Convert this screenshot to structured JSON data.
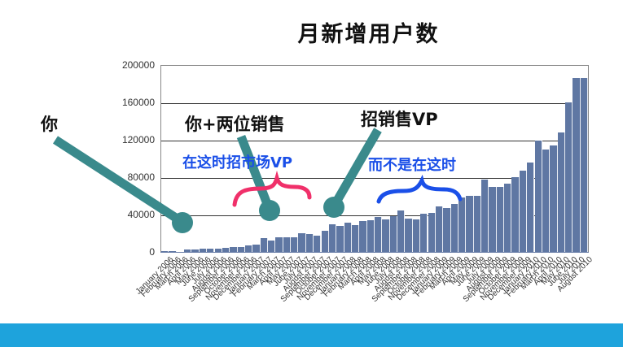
{
  "chart_data": {
    "type": "bar",
    "title": "月新增用户数",
    "xlabel": "",
    "ylabel": "",
    "ylim": [
      0,
      200000
    ],
    "yticks": [
      0,
      40000,
      80000,
      120000,
      160000,
      200000
    ],
    "grid": true,
    "legend": null,
    "categories": [
      "January 2006",
      "February 2006",
      "March 2006",
      "April 2006",
      "May 2006",
      "June 2006",
      "July 2006",
      "August 2006",
      "September 2006",
      "October 2006",
      "November 2006",
      "December 2006",
      "January 2007",
      "February 2007",
      "March 2007",
      "April 2007",
      "May 2007",
      "June 2007",
      "July 2007",
      "August 2007",
      "September 2007",
      "October 2007",
      "November 2007",
      "December 2007",
      "January 2008",
      "February 2008",
      "March 2008",
      "April 2008",
      "May 2008",
      "June 2008",
      "July 2008",
      "August 2008",
      "September 2008",
      "October 2008",
      "November 2008",
      "December 2008",
      "January 2009",
      "February 2009",
      "March 2009",
      "April 2009",
      "May 2009",
      "June 2009",
      "July 2009",
      "August 2009",
      "September 2009",
      "October 2009",
      "November 2009",
      "December 2009",
      "January 2010",
      "February 2010",
      "March 2010",
      "April 2010",
      "May 2010",
      "June 2010",
      "July 2010",
      "August 2010"
    ],
    "values": [
      1000,
      500,
      300,
      2500,
      2500,
      3500,
      3500,
      3500,
      4500,
      5500,
      5500,
      7000,
      8000,
      15000,
      12000,
      16000,
      16000,
      16000,
      20000,
      19000,
      17000,
      23000,
      30000,
      28000,
      31000,
      29000,
      33000,
      34000,
      37000,
      35000,
      38000,
      44000,
      36000,
      35000,
      41000,
      42000,
      49000,
      47000,
      51000,
      58000,
      60000,
      60000,
      77000,
      70000,
      70000,
      73000,
      80000,
      87000,
      96000,
      119000,
      110000,
      114000,
      128000,
      160000,
      186000,
      186000
    ],
    "annotations": [
      {
        "text": "你",
        "color": "#111111"
      },
      {
        "text": "你+两位销售",
        "color": "#111111"
      },
      {
        "text": "招销售VP",
        "color": "#111111"
      },
      {
        "text": "在这时招市场VP",
        "color": "#1a4fe8"
      },
      {
        "text": "而不是在这时",
        "color": "#1a4fe8"
      }
    ]
  },
  "title": "月新增用户数",
  "y_axis": {
    "ticks": [
      "0",
      "40000",
      "80000",
      "120000",
      "160000",
      "200000"
    ]
  },
  "x_axis": {
    "first_label": "January 2006",
    "last_label": "August 2010"
  },
  "annotations": {
    "you": "你",
    "you_plus_two_sales": "你+两位销售",
    "hire_sales_vp": "招销售VP",
    "hire_marketing_vp_here": "在这时招市场VP",
    "not_here": "而不是在这时"
  },
  "colors": {
    "bar": "#5f77a3",
    "pointer": "#3a8a8c",
    "pink_brace": "#f0306a",
    "blue_brace": "#1a4fe8",
    "blue_text": "#1a4fe8",
    "footer": "#1ea3dc"
  }
}
